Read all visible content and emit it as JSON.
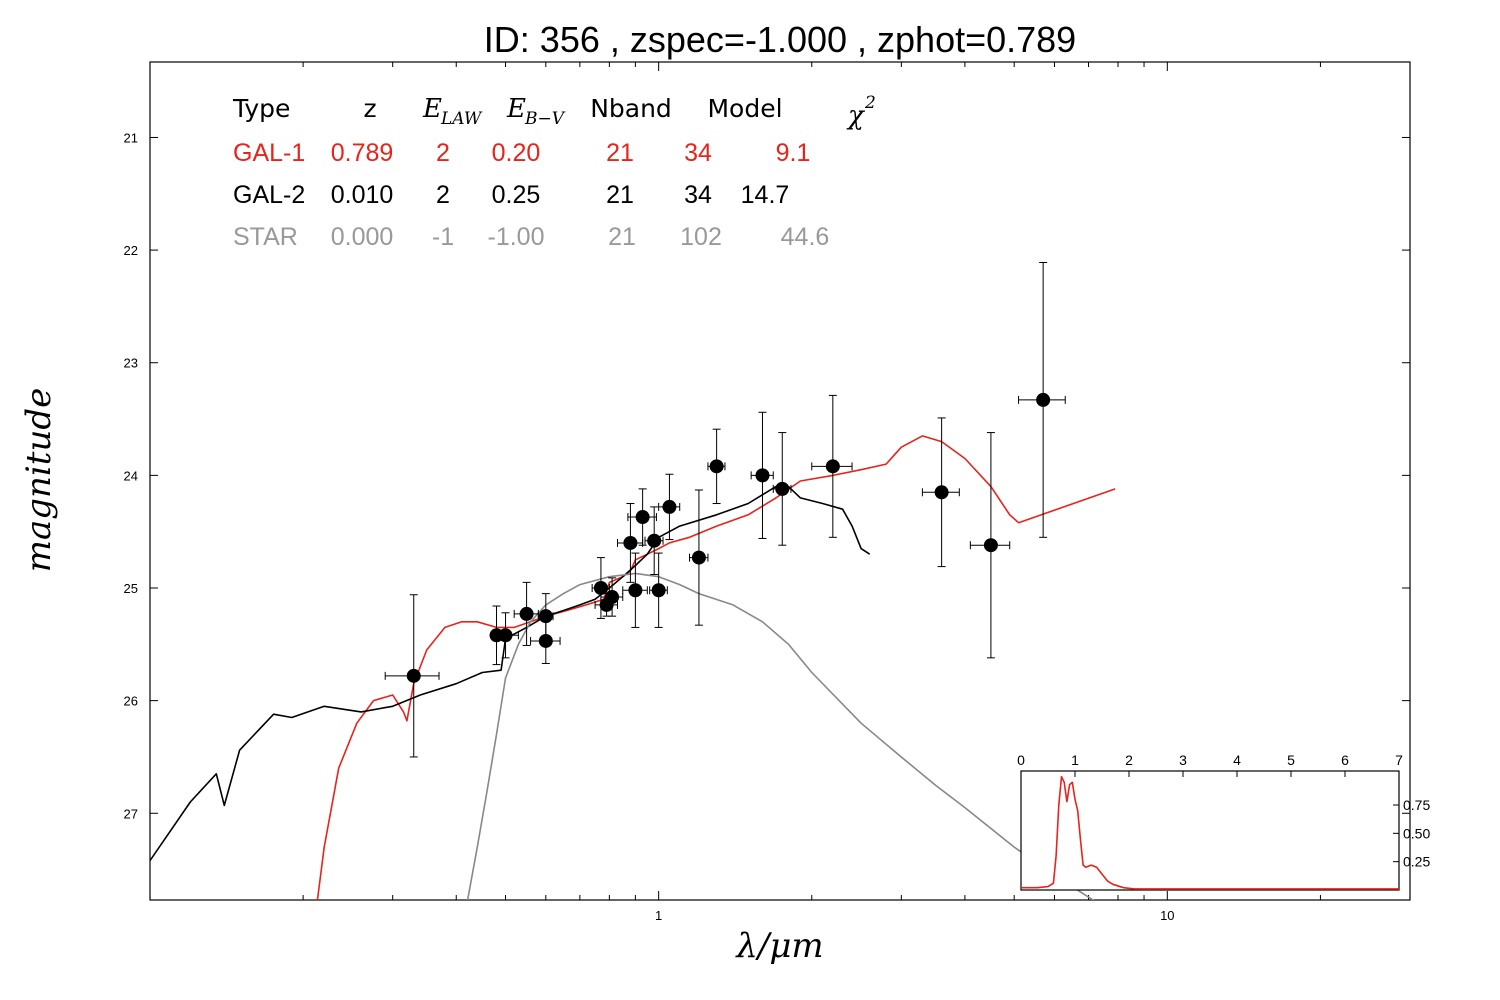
{
  "chart_data": [
    {
      "type": "line",
      "title": "ID:  356   , zspec=-1.000 , zphot=0.789",
      "xlabel": "λ/μm",
      "ylabel": "magnitude",
      "xscale": "log",
      "xlim": [
        0.1,
        30
      ],
      "ylim": [
        27.77,
        20.33
      ],
      "y_inverted": true,
      "xticks": [
        {
          "value": 1,
          "label": "1"
        },
        {
          "value": 10,
          "label": "10"
        }
      ],
      "yticks": [
        {
          "value": 21,
          "label": "21"
        },
        {
          "value": 22,
          "label": "22"
        },
        {
          "value": 23,
          "label": "23"
        },
        {
          "value": 24,
          "label": "24"
        },
        {
          "value": 25,
          "label": "25"
        },
        {
          "value": 26,
          "label": "26"
        },
        {
          "value": 27,
          "label": "27"
        }
      ],
      "table": {
        "header": {
          "type": "Type",
          "z": "z",
          "elaw_main": "E",
          "elaw_sub": "LAW",
          "ebv_main": "E",
          "ebv_sub": "B−V",
          "nband": "Nband",
          "model": "Model",
          "chi2_main": "χ",
          "chi2_sup": "2"
        },
        "rows": [
          {
            "type": "GAL-1",
            "z": "0.789",
            "elaw": "2",
            "ebv": "0.20",
            "nband": "21",
            "model": "34",
            "chi2": "9.1",
            "color": "#e8231b"
          },
          {
            "type": "GAL-2",
            "z": "0.010",
            "elaw": "2",
            "ebv": "0.25",
            "nband": "21",
            "model": "34",
            "chi2": "14.7",
            "color": "#000000"
          },
          {
            "type": "STAR",
            "z": "0.000",
            "elaw": "-1",
            "ebv": "-1.00",
            "nband": "21",
            "model": "102",
            "chi2": "44.6",
            "color": "#999999"
          }
        ]
      },
      "series": [
        {
          "color": "#e8231b",
          "points": [
            [
              0.213,
              27.8
            ],
            [
              0.22,
              27.3
            ],
            [
              0.235,
              26.6
            ],
            [
              0.255,
              26.2
            ],
            [
              0.275,
              26.0
            ],
            [
              0.3,
              25.95
            ],
            [
              0.315,
              26.1
            ],
            [
              0.32,
              26.18
            ],
            [
              0.33,
              25.85
            ],
            [
              0.35,
              25.55
            ],
            [
              0.38,
              25.35
            ],
            [
              0.41,
              25.3
            ],
            [
              0.44,
              25.3
            ],
            [
              0.48,
              25.35
            ],
            [
              0.52,
              25.35
            ],
            [
              0.56,
              25.3
            ],
            [
              0.6,
              25.25
            ],
            [
              0.66,
              25.2
            ],
            [
              0.72,
              25.15
            ],
            [
              0.78,
              25.1
            ],
            [
              0.8,
              24.95
            ],
            [
              0.85,
              24.9
            ],
            [
              0.88,
              24.85
            ],
            [
              0.9,
              24.75
            ],
            [
              0.95,
              24.7
            ],
            [
              1.0,
              24.65
            ],
            [
              1.05,
              24.6
            ],
            [
              1.15,
              24.55
            ],
            [
              1.3,
              24.45
            ],
            [
              1.5,
              24.35
            ],
            [
              1.7,
              24.2
            ],
            [
              1.9,
              24.05
            ],
            [
              2.2,
              24.0
            ],
            [
              2.5,
              23.95
            ],
            [
              2.8,
              23.9
            ],
            [
              3.0,
              23.75
            ],
            [
              3.3,
              23.65
            ],
            [
              3.6,
              23.7
            ],
            [
              4.0,
              23.85
            ],
            [
              4.5,
              24.1
            ],
            [
              4.9,
              24.35
            ],
            [
              5.1,
              24.42
            ],
            [
              7.9,
              24.12
            ]
          ]
        },
        {
          "color": "#000000",
          "points": [
            [
              0.1,
              27.42
            ],
            [
              0.12,
              26.9
            ],
            [
              0.135,
              26.65
            ],
            [
              0.14,
              26.93
            ],
            [
              0.15,
              26.44
            ],
            [
              0.175,
              26.12
            ],
            [
              0.19,
              26.15
            ],
            [
              0.22,
              26.05
            ],
            [
              0.26,
              26.1
            ],
            [
              0.3,
              26.05
            ],
            [
              0.34,
              25.95
            ],
            [
              0.4,
              25.85
            ],
            [
              0.45,
              25.75
            ],
            [
              0.49,
              25.73
            ],
            [
              0.5,
              25.45
            ],
            [
              0.55,
              25.35
            ],
            [
              0.6,
              25.25
            ],
            [
              0.65,
              25.2
            ],
            [
              0.7,
              25.15
            ],
            [
              0.75,
              25.1
            ],
            [
              0.8,
              25.0
            ],
            [
              0.85,
              24.9
            ],
            [
              0.9,
              24.8
            ],
            [
              0.95,
              24.7
            ],
            [
              1.0,
              24.55
            ],
            [
              1.1,
              24.45
            ],
            [
              1.3,
              24.35
            ],
            [
              1.5,
              24.25
            ],
            [
              1.7,
              24.1
            ],
            [
              1.8,
              24.1
            ],
            [
              1.9,
              24.2
            ],
            [
              2.1,
              24.25
            ],
            [
              2.3,
              24.3
            ],
            [
              2.4,
              24.45
            ],
            [
              2.5,
              24.65
            ],
            [
              2.6,
              24.7
            ]
          ]
        },
        {
          "color": "#888888",
          "points": [
            [
              0.42,
              27.8
            ],
            [
              0.44,
              27.3
            ],
            [
              0.46,
              26.8
            ],
            [
              0.48,
              26.3
            ],
            [
              0.5,
              25.8
            ],
            [
              0.53,
              25.5
            ],
            [
              0.56,
              25.3
            ],
            [
              0.6,
              25.15
            ],
            [
              0.65,
              25.05
            ],
            [
              0.7,
              24.97
            ],
            [
              0.8,
              24.9
            ],
            [
              0.9,
              24.87
            ],
            [
              1.0,
              24.9
            ],
            [
              1.1,
              24.97
            ],
            [
              1.2,
              25.05
            ],
            [
              1.4,
              25.15
            ],
            [
              1.6,
              25.3
            ],
            [
              1.8,
              25.5
            ],
            [
              2.0,
              25.75
            ],
            [
              2.5,
              26.2
            ],
            [
              3.0,
              26.5
            ],
            [
              3.5,
              26.75
            ],
            [
              4.0,
              26.95
            ],
            [
              5.0,
              27.3
            ],
            [
              6.0,
              27.55
            ],
            [
              7.2,
              27.78
            ]
          ]
        }
      ],
      "points": [
        {
          "x": 0.33,
          "y": 25.78,
          "yerr": 0.72,
          "xlo": 0.29,
          "xhi": 0.37
        },
        {
          "x": 0.48,
          "y": 25.42,
          "yerr": 0.26,
          "xlo": 0.47,
          "xhi": 0.49
        },
        {
          "x": 0.5,
          "y": 25.42,
          "yerr": 0.2,
          "xlo": 0.47,
          "xhi": 0.53
        },
        {
          "x": 0.55,
          "y": 25.23,
          "yerr": 0.28,
          "xlo": 0.52,
          "xhi": 0.58
        },
        {
          "x": 0.6,
          "y": 25.25,
          "yerr": 0.2,
          "xlo": 0.58,
          "xhi": 0.62
        },
        {
          "x": 0.6,
          "y": 25.47,
          "yerr": 0.2,
          "xlo": 0.56,
          "xhi": 0.64
        },
        {
          "x": 0.77,
          "y": 25.0,
          "yerr": 0.27,
          "xlo": 0.74,
          "xhi": 0.8
        },
        {
          "x": 0.79,
          "y": 25.15,
          "yerr": 0.1,
          "xlo": 0.75,
          "xhi": 0.83
        },
        {
          "x": 0.81,
          "y": 25.08,
          "yerr": 0.17,
          "xlo": 0.77,
          "xhi": 0.85
        },
        {
          "x": 0.88,
          "y": 24.6,
          "yerr": 0.35,
          "xlo": 0.83,
          "xhi": 0.93
        },
        {
          "x": 0.9,
          "y": 25.02,
          "yerr": 0.33,
          "xlo": 0.85,
          "xhi": 0.95
        },
        {
          "x": 0.93,
          "y": 24.37,
          "yerr": 0.25,
          "xlo": 0.87,
          "xhi": 0.99
        },
        {
          "x": 0.98,
          "y": 24.58,
          "yerr": 0.3,
          "xlo": 0.94,
          "xhi": 1.02
        },
        {
          "x": 1.0,
          "y": 25.02,
          "yerr": 0.33,
          "xlo": 0.96,
          "xhi": 1.04
        },
        {
          "x": 1.05,
          "y": 24.28,
          "yerr": 0.29,
          "xlo": 1.0,
          "xhi": 1.1
        },
        {
          "x": 1.2,
          "y": 24.73,
          "yerr": 0.6,
          "xlo": 1.15,
          "xhi": 1.25
        },
        {
          "x": 1.3,
          "y": 23.92,
          "yerr": 0.33,
          "xlo": 1.25,
          "xhi": 1.35
        },
        {
          "x": 1.6,
          "y": 24.0,
          "yerr": 0.56,
          "xlo": 1.52,
          "xhi": 1.68
        },
        {
          "x": 1.75,
          "y": 24.12,
          "yerr": 0.5,
          "xlo": 1.68,
          "xhi": 1.82
        },
        {
          "x": 2.2,
          "y": 23.92,
          "yerr": 0.63,
          "xlo": 2.0,
          "xhi": 2.4
        },
        {
          "x": 3.6,
          "y": 24.15,
          "yerr": 0.66,
          "xlo": 3.3,
          "xhi": 3.9
        },
        {
          "x": 4.5,
          "y": 24.62,
          "yerr": 1.0,
          "xlo": 4.1,
          "xhi": 4.9
        },
        {
          "x": 5.7,
          "y": 23.33,
          "yerr": 1.22,
          "xlo": 5.1,
          "xhi": 6.3
        }
      ]
    },
    {
      "type": "line",
      "title": "",
      "xlabel": "",
      "ylabel": "",
      "xlim": [
        0,
        7
      ],
      "ylim": [
        0,
        1.05
      ],
      "xticks": [
        "0",
        "1",
        "2",
        "3",
        "4",
        "5",
        "6",
        "7"
      ],
      "yticks": [
        {
          "value": 0.25,
          "label": "0.25"
        },
        {
          "value": 0.5,
          "label": "0.50"
        },
        {
          "value": 0.75,
          "label": "0.75"
        }
      ],
      "series": [
        {
          "color": "#e8231b",
          "x": [
            0,
            0.3,
            0.5,
            0.6,
            0.65,
            0.7,
            0.75,
            0.8,
            0.85,
            0.9,
            0.95,
            1.0,
            1.05,
            1.1,
            1.15,
            1.2,
            1.3,
            1.4,
            1.5,
            1.6,
            1.7,
            1.9,
            2.1,
            7
          ],
          "y": [
            0.02,
            0.02,
            0.03,
            0.06,
            0.3,
            0.75,
            1.0,
            0.95,
            0.78,
            0.93,
            0.95,
            0.8,
            0.7,
            0.45,
            0.22,
            0.2,
            0.22,
            0.2,
            0.14,
            0.08,
            0.05,
            0.02,
            0.01,
            0.01
          ]
        }
      ]
    }
  ]
}
